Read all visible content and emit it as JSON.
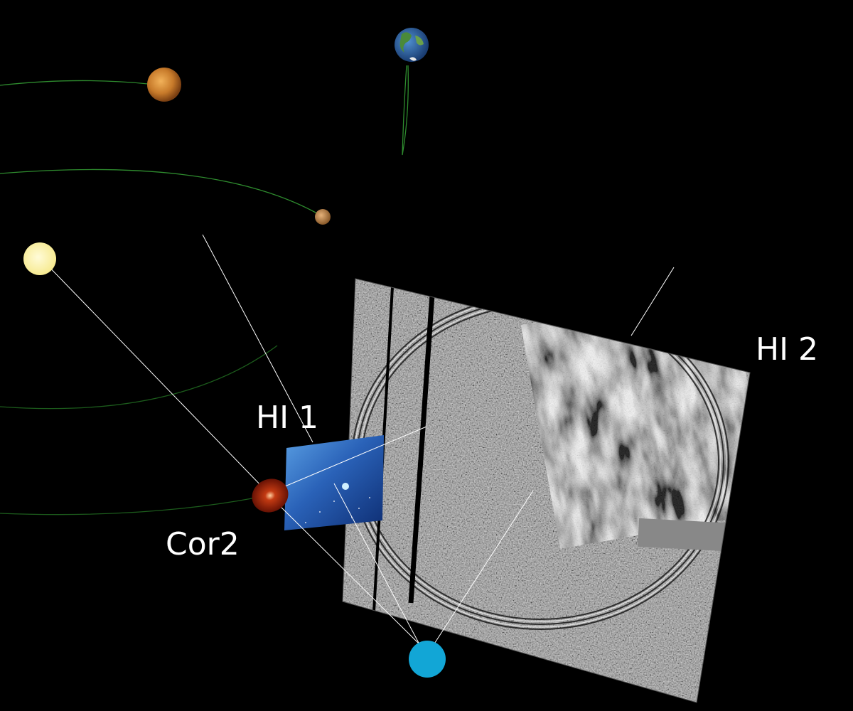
{
  "labels": {
    "hi2": "HI 2",
    "hi1": "HI 1",
    "cor2": "Cor2"
  },
  "colors": {
    "background": "#000000",
    "orbit": "#2e8b2e",
    "sightline": "#ffffff",
    "sun": "#fff4b0",
    "spacecraft": "#12a6d6",
    "cor2_disc": "#b5220a",
    "hi1_panel": "#1f4fa0",
    "hi2_panel": "#8c8c8c"
  },
  "objects": {
    "sun": "sun",
    "venus": "venus",
    "mercury": "mercury",
    "earth": "earth",
    "spacecraft": "stereo-spacecraft",
    "cor2": "cor2-coronagraph-image",
    "hi1": "hi1-heliospheric-imager-panel",
    "hi2": "hi2-heliospheric-imager-panel"
  }
}
